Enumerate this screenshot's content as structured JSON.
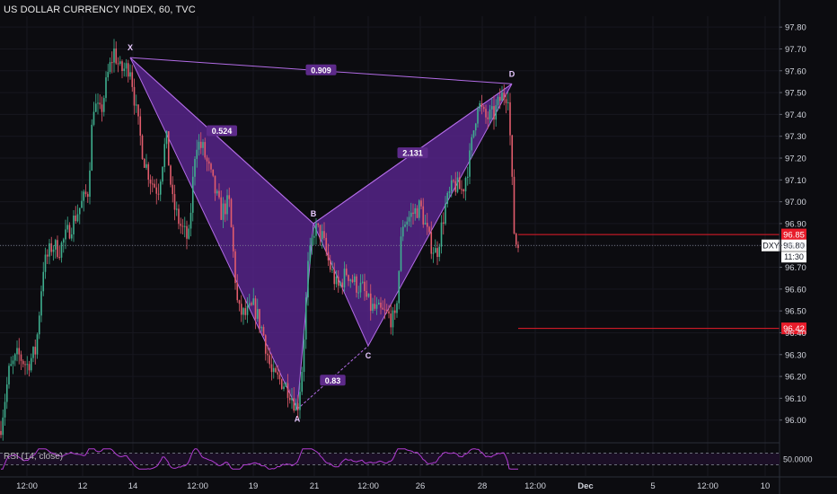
{
  "header": {
    "title": "US DOLLAR CURRENCY INDEX, 60, TVC"
  },
  "colors": {
    "background": "#0c0c10",
    "up_candle": "#3fb08f",
    "down_candle": "#e25c6c",
    "pattern_fill": "#5a2590",
    "pattern_line": "#b26ce6",
    "level_line": "#e81c2a",
    "rsi_line": "#b13cd2",
    "axis_text": "#d1d4dc"
  },
  "chart_data": {
    "type": "candlestick",
    "title": "US DOLLAR CURRENCY INDEX, 60, TVC",
    "symbol": "DXY",
    "interval": "60",
    "source": "TVC",
    "ylim": [
      95.9,
      97.85
    ],
    "y_ticks": [
      "97.80",
      "97.70",
      "97.60",
      "97.50",
      "97.40",
      "97.30",
      "97.20",
      "97.10",
      "97.00",
      "96.90",
      "96.80",
      "96.70",
      "96.60",
      "96.50",
      "96.40",
      "96.30",
      "96.20",
      "96.10",
      "96.00"
    ],
    "x_ticks": [
      "12:00",
      "12",
      "14",
      "12:00",
      "19",
      "21",
      "12:00",
      "26",
      "28",
      "12:00",
      "Dec",
      "5",
      "12:00",
      "10"
    ],
    "price_path": [
      [
        0,
        95.95
      ],
      [
        10,
        96.22
      ],
      [
        20,
        96.3
      ],
      [
        30,
        96.25
      ],
      [
        40,
        96.32
      ],
      [
        48,
        96.7
      ],
      [
        58,
        96.8
      ],
      [
        66,
        96.78
      ],
      [
        78,
        96.88
      ],
      [
        86,
        96.95
      ],
      [
        98,
        97.05
      ],
      [
        104,
        97.45
      ],
      [
        112,
        97.4
      ],
      [
        120,
        97.58
      ],
      [
        127,
        97.69
      ],
      [
        134,
        97.6
      ],
      [
        145,
        97.62
      ],
      [
        152,
        97.4
      ],
      [
        160,
        97.2
      ],
      [
        168,
        97.1
      ],
      [
        176,
        97.05
      ],
      [
        185,
        97.3
      ],
      [
        192,
        97.0
      ],
      [
        200,
        96.9
      ],
      [
        210,
        96.82
      ],
      [
        218,
        97.28
      ],
      [
        226,
        97.24
      ],
      [
        236,
        97.1
      ],
      [
        246,
        96.95
      ],
      [
        255,
        97.0
      ],
      [
        265,
        96.5
      ],
      [
        273,
        96.48
      ],
      [
        283,
        96.52
      ],
      [
        293,
        96.4
      ],
      [
        303,
        96.2
      ],
      [
        313,
        96.18
      ],
      [
        322,
        96.14
      ],
      [
        331,
        96.05
      ],
      [
        336,
        96.22
      ],
      [
        343,
        96.7
      ],
      [
        350,
        96.88
      ],
      [
        358,
        96.85
      ],
      [
        366,
        96.72
      ],
      [
        376,
        96.6
      ],
      [
        386,
        96.68
      ],
      [
        396,
        96.62
      ],
      [
        404,
        96.6
      ],
      [
        412,
        96.52
      ],
      [
        420,
        96.5
      ],
      [
        432,
        96.48
      ],
      [
        440,
        96.45
      ],
      [
        448,
        96.9
      ],
      [
        458,
        96.94
      ],
      [
        468,
        96.98
      ],
      [
        478,
        96.82
      ],
      [
        486,
        96.76
      ],
      [
        496,
        96.98
      ],
      [
        505,
        97.08
      ],
      [
        515,
        97.05
      ],
      [
        523,
        97.2
      ],
      [
        532,
        97.46
      ],
      [
        540,
        97.38
      ],
      [
        550,
        97.4
      ],
      [
        558,
        97.48
      ],
      [
        566,
        97.5
      ],
      [
        570,
        97.1
      ],
      [
        573,
        96.82
      ],
      [
        577,
        96.8
      ]
    ],
    "current_price": "96.80",
    "countdown": "11:30",
    "levels": [
      {
        "price": 96.85,
        "label": "96.85"
      },
      {
        "price": 96.42,
        "label": "96.42"
      }
    ],
    "pattern": {
      "type": "harmonic-bat",
      "points": {
        "X": {
          "label": "X",
          "price": 97.66
        },
        "A": {
          "label": "A",
          "price": 96.05
        },
        "B": {
          "label": "B",
          "price": 96.9
        },
        "C": {
          "label": "C",
          "price": 96.34
        },
        "D": {
          "label": "D",
          "price": 97.54
        }
      },
      "ratios": {
        "XD": "0.909",
        "XB": "0.524",
        "BD": "2.131",
        "AC": "0.83"
      }
    },
    "rsi": {
      "label": "RSI (14, close)",
      "ylim": [
        0,
        100
      ],
      "upper": 70,
      "lower": 30,
      "tick": "50.0000"
    }
  }
}
